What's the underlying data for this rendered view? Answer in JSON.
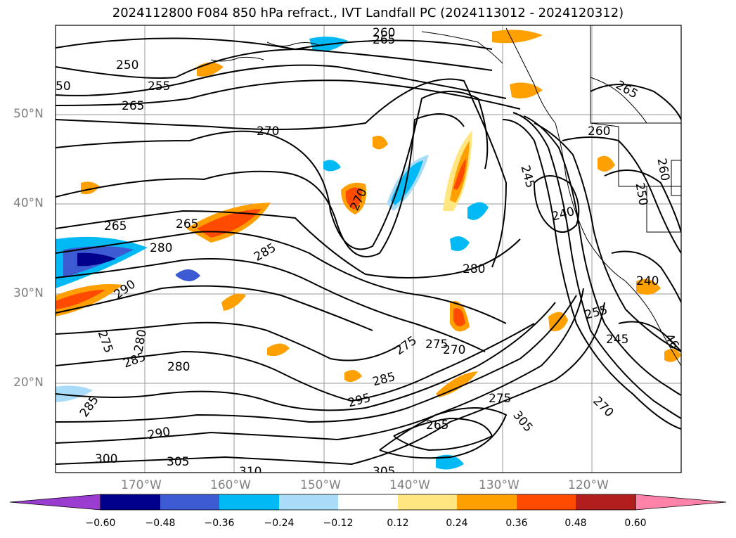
{
  "title": "2024112800 F084 850 hPa refract., IVT Landfall PC (2024113012 - 2024120312)",
  "map": {
    "lat_labels": [
      "50°N",
      "40°N",
      "30°N",
      "20°N"
    ],
    "lon_labels": [
      "170°W",
      "160°W",
      "150°W",
      "140°W",
      "130°W",
      "120°W"
    ],
    "contour_labels": [
      "260",
      "265",
      "250",
      "255",
      "265",
      "50",
      "270",
      "270",
      "265",
      "265",
      "280",
      "285",
      "290",
      "280",
      "275",
      "285",
      "280",
      "285",
      "295",
      "285",
      "275",
      "270",
      "275",
      "265",
      "305",
      "270",
      "260",
      "265",
      "245",
      "240",
      "250",
      "260",
      "240",
      "255",
      "245",
      "290",
      "300",
      "305",
      "310",
      "305",
      "280",
      "275",
      "46"
    ]
  },
  "colorbar": {
    "ticks": [
      "−0.60",
      "−0.48",
      "−0.36",
      "−0.24",
      "−0.12",
      "0.12",
      "0.24",
      "0.36",
      "0.48",
      "0.60"
    ],
    "colors": [
      "#9a3cd0",
      "#00008c",
      "#3c5ad2",
      "#00b9f5",
      "#a8dcf8",
      "#ffffff",
      "#ffe680",
      "#ffa000",
      "#ff4a00",
      "#b21e1e",
      "#ff82a8"
    ]
  }
}
